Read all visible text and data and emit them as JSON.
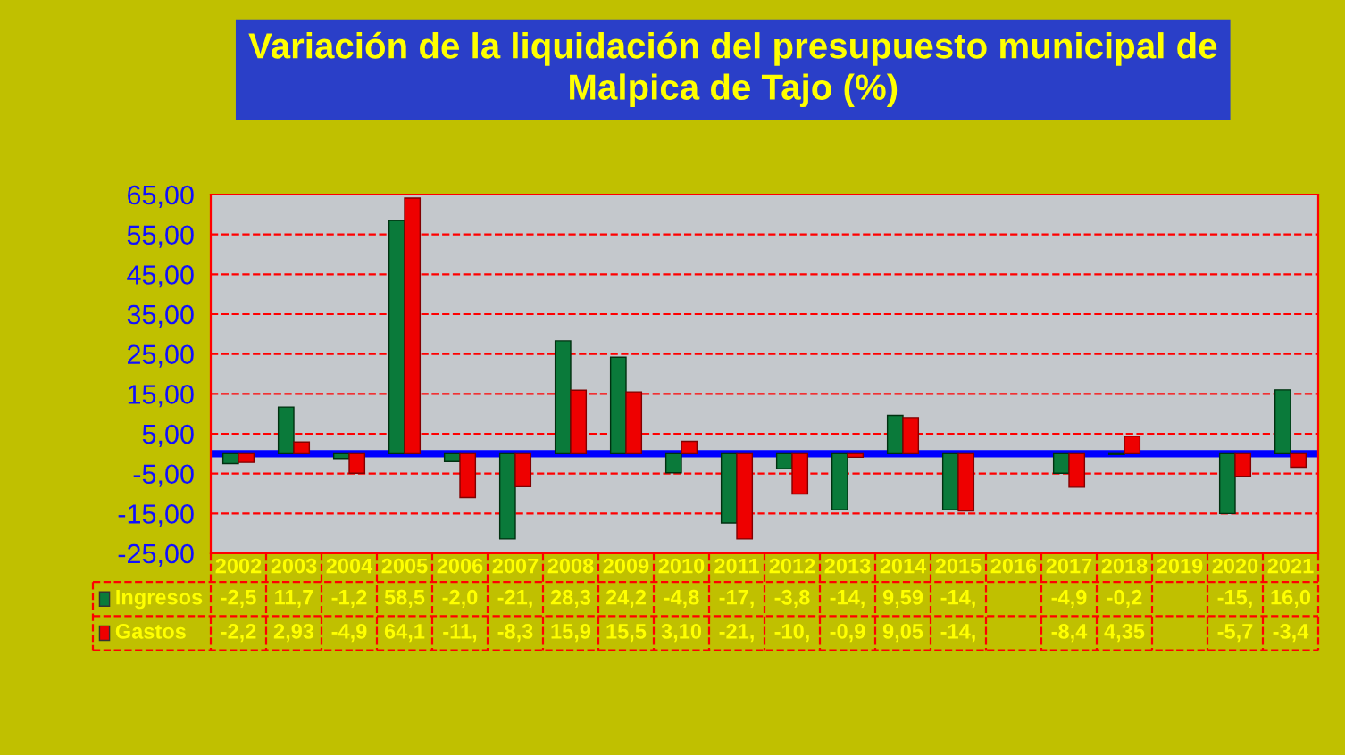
{
  "chart_data": {
    "type": "bar",
    "title": "Variación de la liquidación del presupuesto municipal de\nMalpica de Tajo (%)",
    "categories": [
      "2002",
      "2003",
      "2004",
      "2005",
      "2006",
      "2007",
      "2008",
      "2009",
      "2010",
      "2011",
      "2012",
      "2013",
      "2014",
      "2015",
      "2016",
      "2017",
      "2018",
      "2019",
      "2020",
      "2021"
    ],
    "series": [
      {
        "name": "Ingresos",
        "color": "#0a7a3a",
        "values": [
          -2.5,
          11.7,
          -1.2,
          58.5,
          -2.0,
          -21.4,
          28.3,
          24.2,
          -4.8,
          -17.4,
          -3.8,
          -14.1,
          9.59,
          -14.1,
          null,
          -4.9,
          -0.2,
          null,
          -15.0,
          16.0
        ],
        "value_labels": [
          "-2,5",
          "11,7",
          "-1,2",
          "58,5",
          "-2,0",
          "-21,",
          "28,3",
          "24,2",
          "-4,8",
          "-17,",
          "-3,8",
          "-14,",
          "9,59",
          "-14,",
          null,
          "-4,9",
          "-0,2",
          null,
          "-15,",
          "16,0"
        ]
      },
      {
        "name": "Gastos",
        "color": "#ee0000",
        "values": [
          -2.2,
          2.93,
          -4.9,
          64.1,
          -11.0,
          -8.3,
          15.9,
          15.5,
          3.1,
          -21.4,
          -10.1,
          -0.9,
          9.05,
          -14.4,
          null,
          -8.4,
          4.35,
          null,
          -5.7,
          -3.4
        ],
        "value_labels": [
          "-2,2",
          "2,93",
          "-4,9",
          "64,1",
          "-11,",
          "-8,3",
          "15,9",
          "15,5",
          "3,10",
          "-21,",
          "-10,",
          "-0,9",
          "9,05",
          "-14,",
          null,
          "-8,4",
          "4,35",
          null,
          "-5,7",
          "-3,4"
        ]
      }
    ],
    "ylim": [
      -25,
      65
    ],
    "yticks": [
      {
        "value": -25,
        "label": "-25,00"
      },
      {
        "value": -15,
        "label": "-15,00"
      },
      {
        "value": -5,
        "label": "-5,00"
      },
      {
        "value": 5,
        "label": "5,00"
      },
      {
        "value": 15,
        "label": "15,00"
      },
      {
        "value": 25,
        "label": "25,00"
      },
      {
        "value": 35,
        "label": "35,00"
      },
      {
        "value": 45,
        "label": "45,00"
      },
      {
        "value": 55,
        "label": "55,00"
      },
      {
        "value": 65,
        "label": "65,00"
      }
    ],
    "grid": "y",
    "legend": "bottom left",
    "ref_lines": [
      {
        "axis": "y",
        "value": 0,
        "color": "#0000ff"
      }
    ]
  }
}
